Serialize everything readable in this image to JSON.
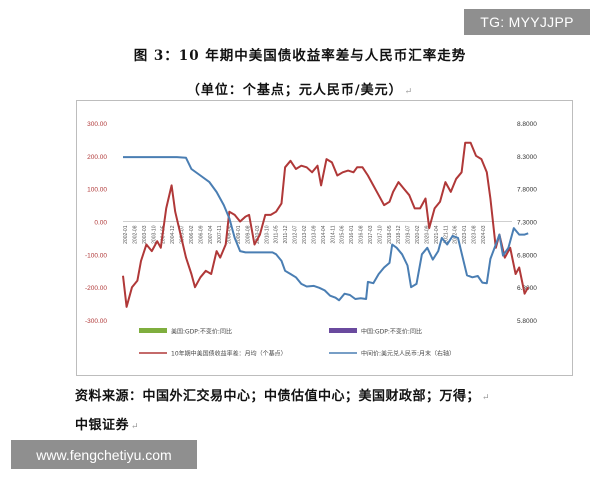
{
  "watermarks": {
    "top": "TG: MYYJJPP",
    "bottom": "www.fengchetiyu.com"
  },
  "title": "图 3：10 年期中美国债收益率差与人民币汇率走势",
  "subtitle": "（单位：个基点；元人民币/美元）",
  "source_line1": "资料来源：中国外汇交易中心；中债估值中心；美国财政部；万得；",
  "source_line2": "中银证券",
  "colors": {
    "spread": "#b03838",
    "usdcny": "#4a7eb3",
    "us_gdp": "#7fae3e",
    "cn_gdp": "#6a4a9e",
    "axis_left": "#b03838",
    "axis_right": "#333333"
  },
  "chart_data": {
    "type": "line",
    "title": "10 年期中美国债收益率差与人民币汇率走势",
    "left_axis": {
      "ylim": [
        -300,
        300
      ],
      "ticks": [
        "300.00",
        "200.00",
        "100.00",
        "0.00",
        "-100.00",
        "-200.00",
        "-300.00"
      ],
      "tick_values": [
        300,
        200,
        100,
        0,
        -100,
        -200,
        -300
      ]
    },
    "right_axis": {
      "ylim": [
        5.8,
        8.8
      ],
      "ticks": [
        "8.8000",
        "8.3000",
        "7.8000",
        "7.3000",
        "6.8000",
        "6.3000",
        "5.8000"
      ],
      "tick_values": [
        8.8,
        8.3,
        7.8,
        7.3,
        6.8,
        6.3,
        5.8
      ]
    },
    "x_ticks": [
      "2002-01",
      "2002-08",
      "2003-03",
      "2003-10",
      "2004-05",
      "2004-12",
      "2005-07",
      "2006-02",
      "2006-09",
      "2007-04",
      "2007-11",
      "2008-06",
      "2009-01",
      "2009-08",
      "2010-03",
      "2010-10",
      "2011-05",
      "2011-12",
      "2012-07",
      "2013-02",
      "2013-09",
      "2014-04",
      "2014-11",
      "2015-06",
      "2016-01",
      "2016-08",
      "2017-03",
      "2017-10",
      "2018-05",
      "2018-12",
      "2019-07",
      "2020-02",
      "2020-09",
      "2021-04",
      "2021-11",
      "2022-06",
      "2023-01",
      "2023-08",
      "2024-03"
    ],
    "x_range": [
      2002.0,
      2024.6
    ],
    "legend": [
      {
        "name": "美国:GDP:不变价:同比",
        "type": "bar"
      },
      {
        "name": "中国:GDP:不变价:同比",
        "type": "bar"
      },
      {
        "name": "10年期中美国债收益率差：月均（个基点）",
        "type": "line"
      },
      {
        "name": "中间价:美元兑人民币:月末（右轴）",
        "type": "line"
      }
    ],
    "legend_position": "bottom",
    "grid": false,
    "series": [
      {
        "name": "10年期中美国债收益率差：月均（个基点）",
        "axis": "left",
        "x": [
          2002.0,
          2002.2,
          2002.5,
          2002.8,
          2003.0,
          2003.3,
          2003.6,
          2003.9,
          2004.1,
          2004.4,
          2004.7,
          2004.9,
          2005.2,
          2005.5,
          2005.8,
          2006.0,
          2006.3,
          2006.6,
          2006.9,
          2007.2,
          2007.4,
          2007.7,
          2007.9,
          2008.2,
          2008.5,
          2008.8,
          2009.0,
          2009.3,
          2009.6,
          2009.9,
          2010.2,
          2010.5,
          2010.8,
          2011.0,
          2011.3,
          2011.6,
          2011.9,
          2012.2,
          2012.5,
          2012.8,
          2013.0,
          2013.3,
          2013.6,
          2013.9,
          2014.2,
          2014.5,
          2014.8,
          2015.0,
          2015.3,
          2015.6,
          2015.9,
          2016.2,
          2016.5,
          2016.8,
          2017.0,
          2017.3,
          2017.6,
          2017.9,
          2018.2,
          2018.5,
          2018.8,
          2019.0,
          2019.3,
          2019.6,
          2019.9,
          2020.2,
          2020.5,
          2020.8,
          2021.0,
          2021.3,
          2021.6,
          2021.9,
          2022.2,
          2022.4,
          2022.7,
          2022.9,
          2023.2,
          2023.5,
          2023.8,
          2024.0,
          2024.3,
          2024.5
        ],
        "values": [
          -165,
          -260,
          -200,
          -180,
          -120,
          -70,
          -90,
          -60,
          -80,
          40,
          110,
          30,
          -40,
          -110,
          -160,
          -200,
          -170,
          -150,
          -160,
          -90,
          -110,
          -70,
          30,
          20,
          0,
          15,
          20,
          -70,
          -40,
          20,
          20,
          30,
          55,
          165,
          185,
          160,
          170,
          165,
          150,
          170,
          110,
          190,
          180,
          140,
          150,
          155,
          150,
          165,
          165,
          140,
          110,
          80,
          50,
          60,
          90,
          120,
          100,
          80,
          40,
          40,
          70,
          -20,
          40,
          60,
          120,
          90,
          130,
          150,
          240,
          240,
          200,
          190,
          150,
          70,
          -80,
          -40,
          -110,
          -80,
          -160,
          -140,
          -220,
          -200
        ]
      },
      {
        "name": "中间价:美元兑人民币:月末（右轴）",
        "axis": "right",
        "x": [
          2002.0,
          2003.0,
          2004.0,
          2005.0,
          2005.5,
          2005.8,
          2006.3,
          2006.8,
          2007.2,
          2007.6,
          2007.9,
          2008.2,
          2008.5,
          2008.8,
          2009.3,
          2009.8,
          2010.3,
          2010.5,
          2010.8,
          2011.0,
          2011.3,
          2011.6,
          2011.9,
          2012.2,
          2012.6,
          2012.9,
          2013.2,
          2013.5,
          2013.8,
          2014.0,
          2014.3,
          2014.6,
          2014.9,
          2015.2,
          2015.5,
          2015.6,
          2015.9,
          2016.2,
          2016.5,
          2016.8,
          2016.95,
          2017.2,
          2017.5,
          2017.8,
          2018.0,
          2018.3,
          2018.6,
          2018.9,
          2019.2,
          2019.5,
          2019.7,
          2020.0,
          2020.3,
          2020.6,
          2020.8,
          2021.1,
          2021.4,
          2021.7,
          2021.95,
          2022.2,
          2022.4,
          2022.7,
          2022.9,
          2023.1,
          2023.4,
          2023.7,
          2024.0,
          2024.3,
          2024.5
        ],
        "values": [
          8.28,
          8.28,
          8.28,
          8.28,
          8.27,
          8.1,
          8.0,
          7.9,
          7.75,
          7.55,
          7.35,
          7.05,
          6.85,
          6.83,
          6.83,
          6.83,
          6.83,
          6.8,
          6.7,
          6.55,
          6.5,
          6.45,
          6.35,
          6.31,
          6.32,
          6.29,
          6.25,
          6.17,
          6.14,
          6.1,
          6.2,
          6.18,
          6.12,
          6.13,
          6.12,
          6.38,
          6.36,
          6.5,
          6.6,
          6.67,
          6.95,
          6.9,
          6.8,
          6.63,
          6.3,
          6.35,
          6.8,
          6.9,
          6.72,
          6.85,
          7.05,
          6.95,
          7.08,
          7.05,
          6.82,
          6.48,
          6.45,
          6.47,
          6.37,
          6.36,
          6.73,
          6.95,
          7.1,
          6.78,
          6.9,
          7.2,
          7.1,
          7.1,
          7.12
        ]
      }
    ]
  }
}
